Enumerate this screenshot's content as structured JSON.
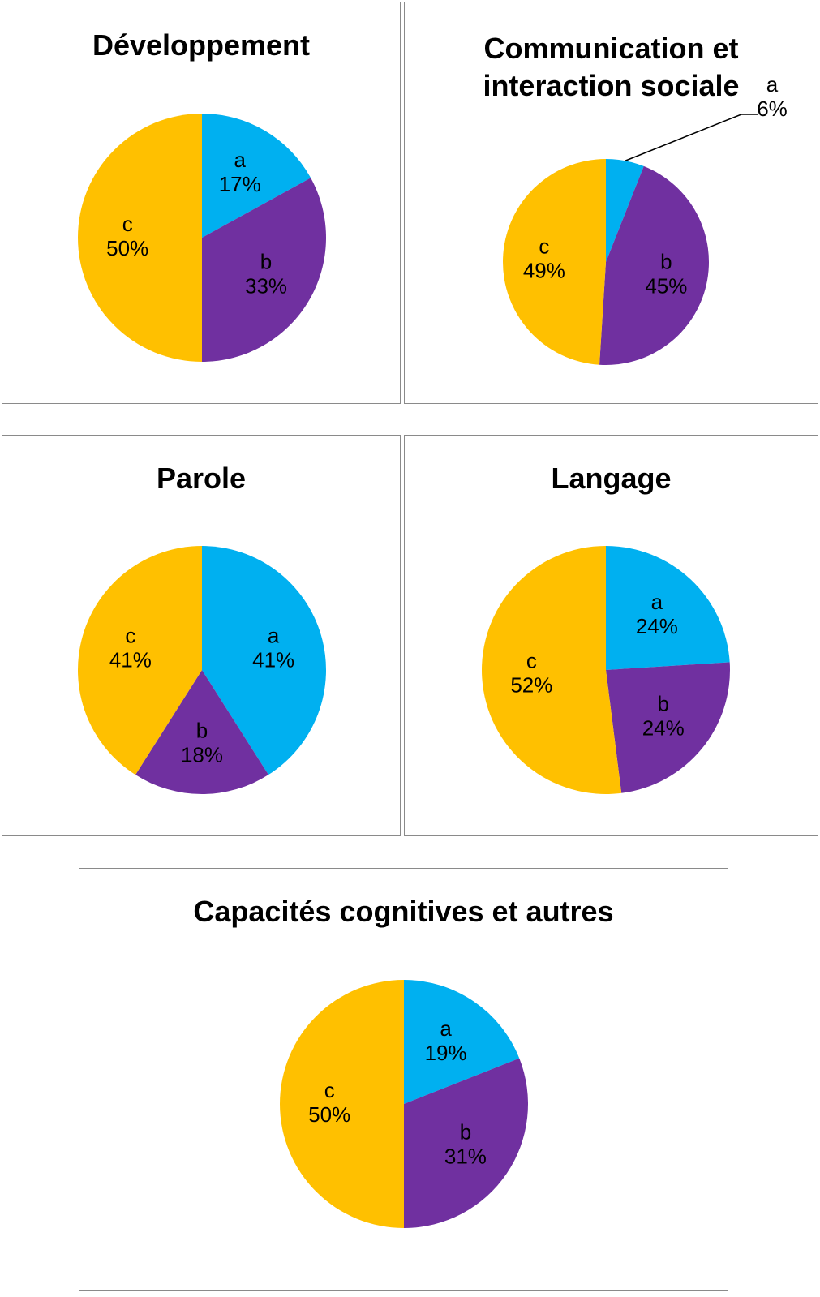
{
  "chart_data": [
    {
      "type": "pie",
      "title": "Développement",
      "categories": [
        "a",
        "b",
        "c"
      ],
      "values": [
        17,
        33,
        50
      ],
      "value_labels": [
        "17%",
        "33%",
        "50%"
      ],
      "colors": [
        "#00b0f0",
        "#7030a0",
        "#ffc000"
      ]
    },
    {
      "type": "pie",
      "title": "Communication et\ninteraction sociale",
      "categories": [
        "a",
        "b",
        "c"
      ],
      "values": [
        6,
        45,
        49
      ],
      "value_labels": [
        "6%",
        "45%",
        "49%"
      ],
      "colors": [
        "#00b0f0",
        "#7030a0",
        "#ffc000"
      ]
    },
    {
      "type": "pie",
      "title": "Parole",
      "categories": [
        "a",
        "b",
        "c"
      ],
      "values": [
        41,
        18,
        41
      ],
      "value_labels": [
        "41%",
        "18%",
        "41%"
      ],
      "colors": [
        "#00b0f0",
        "#7030a0",
        "#ffc000"
      ]
    },
    {
      "type": "pie",
      "title": "Langage",
      "categories": [
        "a",
        "b",
        "c"
      ],
      "values": [
        24,
        24,
        52
      ],
      "value_labels": [
        "24%",
        "24%",
        "52%"
      ],
      "colors": [
        "#00b0f0",
        "#7030a0",
        "#ffc000"
      ]
    },
    {
      "type": "pie",
      "title": "Capacités cognitives et autres",
      "categories": [
        "a",
        "b",
        "c"
      ],
      "values": [
        19,
        31,
        50
      ],
      "value_labels": [
        "19%",
        "31%",
        "50%"
      ],
      "colors": [
        "#00b0f0",
        "#7030a0",
        "#ffc000"
      ]
    }
  ]
}
